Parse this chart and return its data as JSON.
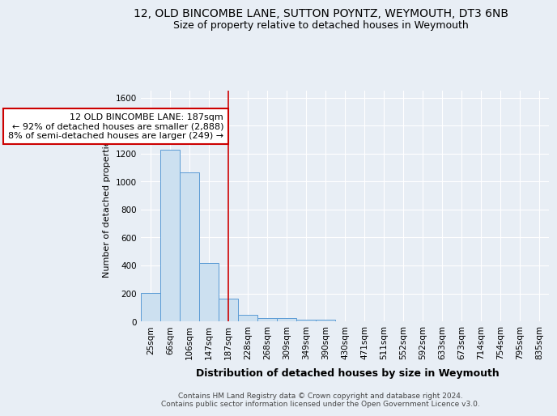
{
  "title1": "12, OLD BINCOMBE LANE, SUTTON POYNTZ, WEYMOUTH, DT3 6NB",
  "title2": "Size of property relative to detached houses in Weymouth",
  "xlabel": "Distribution of detached houses by size in Weymouth",
  "ylabel": "Number of detached properties",
  "categories": [
    "25sqm",
    "66sqm",
    "106sqm",
    "147sqm",
    "187sqm",
    "228sqm",
    "268sqm",
    "309sqm",
    "349sqm",
    "390sqm",
    "430sqm",
    "471sqm",
    "511sqm",
    "552sqm",
    "592sqm",
    "633sqm",
    "673sqm",
    "714sqm",
    "754sqm",
    "795sqm",
    "835sqm"
  ],
  "values": [
    203,
    1228,
    1068,
    415,
    165,
    48,
    25,
    22,
    15,
    15,
    0,
    0,
    0,
    0,
    0,
    0,
    0,
    0,
    0,
    0,
    0
  ],
  "bar_color": "#cce0f0",
  "bar_edge_color": "#5b9bd5",
  "red_line_index": 4,
  "annotation_line1": "12 OLD BINCOMBE LANE: 187sqm",
  "annotation_line2": "← 92% of detached houses are smaller (2,888)",
  "annotation_line3": "8% of semi-detached houses are larger (249) →",
  "annotation_box_color": "#ffffff",
  "annotation_box_edge_color": "#cc0000",
  "ylim": [
    0,
    1650
  ],
  "yticks": [
    0,
    200,
    400,
    600,
    800,
    1000,
    1200,
    1400,
    1600
  ],
  "bg_color": "#e8eef5",
  "plot_bg_color": "#e8eef5",
  "grid_color": "#ffffff",
  "footer": "Contains HM Land Registry data © Crown copyright and database right 2024.\nContains public sector information licensed under the Open Government Licence v3.0.",
  "title1_fontsize": 10,
  "title2_fontsize": 9,
  "xlabel_fontsize": 9,
  "ylabel_fontsize": 8,
  "tick_fontsize": 7.5,
  "annotation_fontsize": 8,
  "footer_fontsize": 6.5
}
